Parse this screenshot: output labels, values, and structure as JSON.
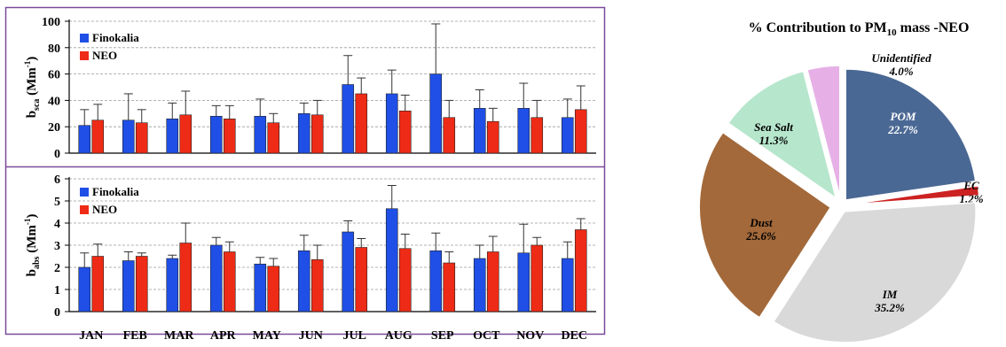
{
  "months": [
    "JAN",
    "FEB",
    "MAR",
    "APR",
    "MAY",
    "JUN",
    "JUL",
    "AUG",
    "SEP",
    "OCT",
    "NOV",
    "DEC"
  ],
  "colors": {
    "finokalia": "#1f4fe6",
    "neo": "#ee2b16",
    "panel_border": "#7a4a9a",
    "grid": "#9a9a9a",
    "pom": "#4a6894",
    "ec": "#cc2222",
    "im": "#d9d9d9",
    "dust": "#a3693a",
    "sea_salt": "#b6e6cc",
    "unidentified": "#e6b0e6"
  },
  "chart_data": [
    {
      "type": "bar",
      "ylabel_main": "b",
      "ylabel_sub": "sca",
      "ylabel_unit": "(Mm",
      "ylabel_sup": "-1",
      "ylabel_close": ")",
      "ylim": [
        0,
        100
      ],
      "yticks": [
        "0",
        "20",
        "40",
        "60",
        "80",
        "100"
      ],
      "grid": true,
      "legend_position": "top-left",
      "series": [
        {
          "name": "Finokalia",
          "values": [
            21,
            25,
            26,
            28,
            28,
            30,
            52,
            45,
            60,
            34,
            34,
            27
          ],
          "err": [
            12,
            20,
            12,
            8,
            13,
            8,
            22,
            18,
            38,
            14,
            19,
            14
          ]
        },
        {
          "name": "NEO",
          "values": [
            25,
            23,
            29,
            26,
            23,
            29,
            45,
            32,
            27,
            24,
            27,
            33
          ],
          "err": [
            12,
            10,
            18,
            10,
            7,
            11,
            12,
            12,
            13,
            10,
            13,
            18
          ]
        }
      ]
    },
    {
      "type": "bar",
      "ylabel_main": "b",
      "ylabel_sub": "abs",
      "ylabel_unit": "(Mm",
      "ylabel_sup": "-1",
      "ylabel_close": ")",
      "ylim": [
        0,
        6
      ],
      "yticks": [
        "0",
        "1",
        "2",
        "3",
        "4",
        "5",
        "6"
      ],
      "grid": true,
      "legend_position": "top-left",
      "series": [
        {
          "name": "Finokalia",
          "values": [
            2.0,
            2.3,
            2.4,
            3.0,
            2.15,
            2.75,
            3.6,
            4.65,
            2.75,
            2.4,
            2.65,
            2.4
          ],
          "err": [
            0.65,
            0.4,
            0.15,
            0.35,
            0.3,
            0.7,
            0.5,
            1.05,
            0.8,
            0.6,
            1.3,
            0.75
          ]
        },
        {
          "name": "NEO",
          "values": [
            2.5,
            2.5,
            3.1,
            2.7,
            2.05,
            2.35,
            2.9,
            2.85,
            2.2,
            2.7,
            3.0,
            3.7
          ],
          "err": [
            0.55,
            0.15,
            0.9,
            0.45,
            0.35,
            0.65,
            0.4,
            0.65,
            0.5,
            0.7,
            0.35,
            0.5
          ]
        }
      ]
    },
    {
      "type": "pie",
      "title_main": "% Contribution to PM",
      "title_sub": "10",
      "title_tail": " mass -NEO",
      "slices": [
        {
          "label": "POM",
          "value": 22.7,
          "value_text": "22.7%",
          "color_key": "pom"
        },
        {
          "label": "EC",
          "value": 1.2,
          "value_text": "1.2%",
          "color_key": "ec"
        },
        {
          "label": "IM",
          "value": 35.2,
          "value_text": "35.2%",
          "color_key": "im"
        },
        {
          "label": "Dust",
          "value": 25.6,
          "value_text": "25.6%",
          "color_key": "dust"
        },
        {
          "label": "Sea Salt",
          "value": 11.3,
          "value_text": "11.3%",
          "color_key": "sea_salt"
        },
        {
          "label": "Unidentified",
          "value": 4.0,
          "value_text": "4.0%",
          "color_key": "unidentified"
        }
      ]
    }
  ]
}
